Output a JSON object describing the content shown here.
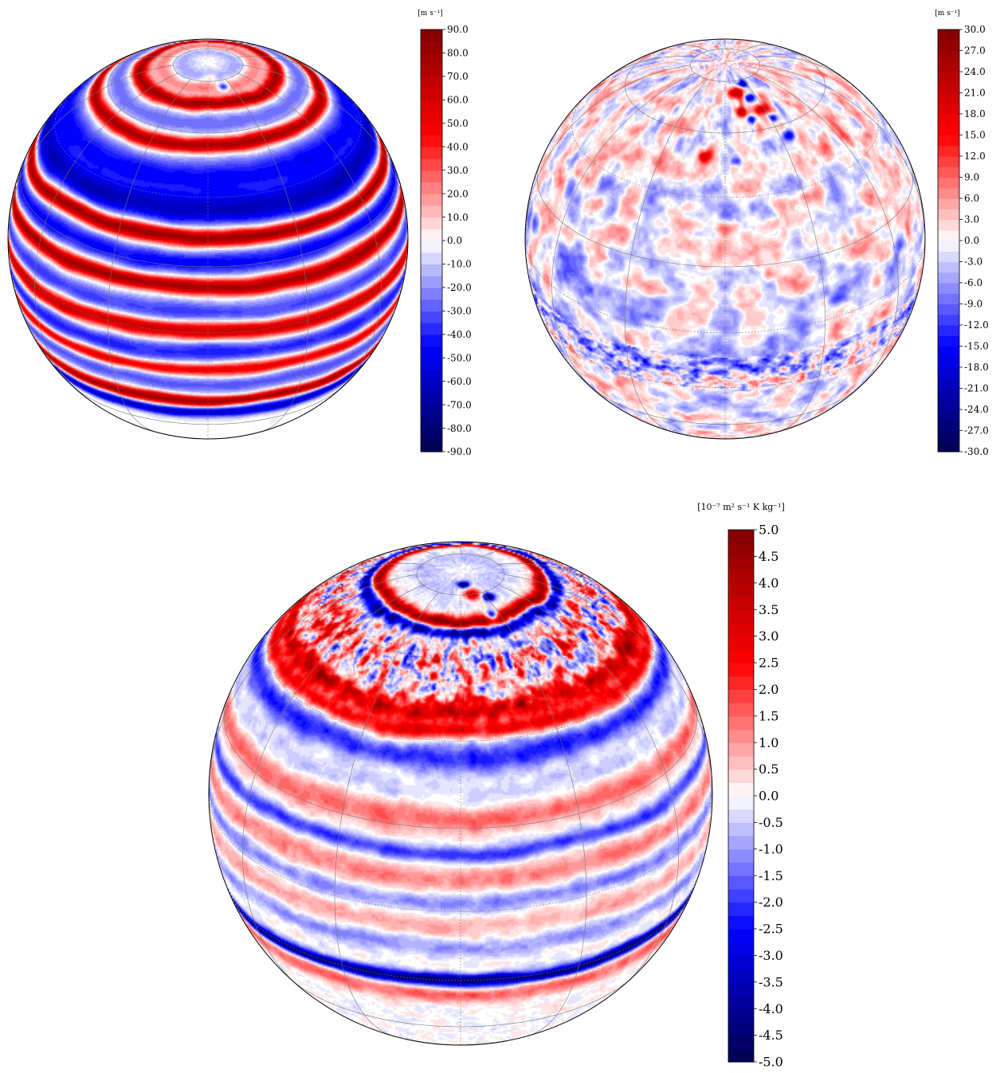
{
  "chart_data": [
    {
      "type": "heatmap",
      "projection": "orthographic",
      "units": "[m s⁻¹]",
      "colormap": "seismic",
      "colorbar": {
        "vmin": -90.0,
        "vmax": 90.0,
        "levels": 36,
        "ticks": [
          "90.0",
          "80.0",
          "70.0",
          "60.0",
          "50.0",
          "40.0",
          "30.0",
          "20.0",
          "10.0",
          "0.0",
          "-10.0",
          "-20.0",
          "-30.0",
          "-40.0",
          "-50.0",
          "-60.0",
          "-70.0",
          "-80.0",
          "-90.0"
        ]
      },
      "field": "zonal",
      "bands": [
        {
          "lat": 82,
          "value": -15,
          "width": 4
        },
        {
          "lat": 77,
          "value": 25,
          "width": 3
        },
        {
          "lat": 70,
          "value": 80,
          "width": 2.5
        },
        {
          "lat": 63,
          "value": -25,
          "width": 4
        },
        {
          "lat": 56,
          "value": 80,
          "width": 2.5
        },
        {
          "lat": 46,
          "value": -45,
          "width": 6
        },
        {
          "lat": 36,
          "value": -60,
          "width": 5
        },
        {
          "lat": 28,
          "value": 85,
          "width": 2.5
        },
        {
          "lat": 21,
          "value": -45,
          "width": 4
        },
        {
          "lat": 14,
          "value": 80,
          "width": 2.5
        },
        {
          "lat": 6,
          "value": -35,
          "width": 4
        },
        {
          "lat": 0,
          "value": 70,
          "width": 3
        },
        {
          "lat": -7,
          "value": -40,
          "width": 4
        },
        {
          "lat": -13,
          "value": 60,
          "width": 2.5
        },
        {
          "lat": -19,
          "value": -30,
          "width": 4
        },
        {
          "lat": -26,
          "value": 80,
          "width": 2.5
        },
        {
          "lat": -32,
          "value": -60,
          "width": 3
        }
      ],
      "vortices": [
        {
          "lat": 82,
          "lon": 5,
          "value": 20,
          "size": 1.5
        },
        {
          "lat": 77,
          "lon": 20,
          "value": -60,
          "size": 1.6
        }
      ],
      "noise": 0.08
    },
    {
      "type": "heatmap",
      "projection": "orthographic",
      "units": "[m s⁻¹]",
      "colormap": "seismic",
      "colorbar": {
        "vmin": -30.0,
        "vmax": 30.0,
        "levels": 40,
        "ticks": [
          "30.0",
          "27.0",
          "24.0",
          "21.0",
          "18.0",
          "15.0",
          "12.0",
          "9.0",
          "6.0",
          "3.0",
          "0.0",
          "-3.0",
          "-6.0",
          "-9.0",
          "-12.0",
          "-15.0",
          "-18.0",
          "-21.0",
          "-24.0",
          "-27.0",
          "-30.0"
        ]
      },
      "field": "eddy",
      "bands": [
        {
          "lat": 48,
          "value": 3,
          "width": 5
        },
        {
          "lat": 8,
          "value": -2,
          "width": 5
        },
        {
          "lat": -12,
          "value": -6,
          "width": 4
        }
      ],
      "vortices": [
        {
          "lat": 75,
          "lon": 12,
          "value": 22,
          "size": 2.5
        },
        {
          "lat": 78,
          "lon": 24,
          "value": -22,
          "size": 1.6
        },
        {
          "lat": 72,
          "lon": 24,
          "value": -20,
          "size": 1.5
        },
        {
          "lat": 67,
          "lon": 28,
          "value": 20,
          "size": 1.8
        },
        {
          "lat": 63,
          "lon": 32,
          "value": -24,
          "size": 1.5
        },
        {
          "lat": 67,
          "lon": 12,
          "value": 24,
          "size": 1.8
        },
        {
          "lat": 64,
          "lon": 18,
          "value": -20,
          "size": 1.5
        },
        {
          "lat": 56,
          "lon": 35,
          "value": -20,
          "size": 1.8
        },
        {
          "lat": 52,
          "lon": -10,
          "value": 18,
          "size": 2.0
        },
        {
          "lat": 51,
          "lon": 5,
          "value": -15,
          "size": 1.5
        }
      ],
      "noise": 0.55
    },
    {
      "type": "heatmap",
      "projection": "orthographic",
      "units": "[10⁻⁷ m² s⁻¹ K kg⁻¹]",
      "colormap": "seismic",
      "colorbar": {
        "vmin": -5.0,
        "vmax": 5.0,
        "levels": 40,
        "ticks": [
          "5.0",
          "4.5",
          "4.0",
          "3.5",
          "3.0",
          "2.5",
          "2.0",
          "1.5",
          "1.0",
          "0.5",
          "0.0",
          "-0.5",
          "-1.0",
          "-1.5",
          "-2.0",
          "-2.5",
          "-3.0",
          "-3.5",
          "-4.0",
          "-4.5",
          "-5.0"
        ]
      },
      "field": "pv",
      "bands": [
        {
          "lat": 82,
          "value": -0.6,
          "width": 5
        },
        {
          "lat": 71,
          "value": 4.8,
          "width": 2
        },
        {
          "lat": 68,
          "value": -4,
          "width": 2
        },
        {
          "lat": 58,
          "value": 0.6,
          "width": 6
        },
        {
          "lat": 47,
          "value": 3.5,
          "width": 3
        },
        {
          "lat": 42,
          "value": 2.6,
          "width": 2
        },
        {
          "lat": 36,
          "value": -2.2,
          "width": 3
        },
        {
          "lat": 28,
          "value": -0.5,
          "width": 3
        },
        {
          "lat": 22,
          "value": 1.5,
          "width": 3
        },
        {
          "lat": 14,
          "value": -2,
          "width": 2
        },
        {
          "lat": 8,
          "value": 1.2,
          "width": 3
        },
        {
          "lat": 2,
          "value": -1.2,
          "width": 2.5
        },
        {
          "lat": -4,
          "value": 0.8,
          "width": 3
        },
        {
          "lat": -10,
          "value": -1.0,
          "width": 2.5
        },
        {
          "lat": -20,
          "value": -4.5,
          "width": 2
        },
        {
          "lat": -25,
          "value": 1.5,
          "width": 3
        }
      ],
      "vortices": [
        {
          "lat": 84,
          "lon": 6,
          "value": -5,
          "size": 1.2
        },
        {
          "lat": 80,
          "lon": 16,
          "value": 4.5,
          "size": 2.0
        },
        {
          "lat": 78,
          "lon": 32,
          "value": -5,
          "size": 1.3
        },
        {
          "lat": 72,
          "lon": 24,
          "value": -5,
          "size": 1.6
        }
      ],
      "noise": 0.9
    }
  ]
}
